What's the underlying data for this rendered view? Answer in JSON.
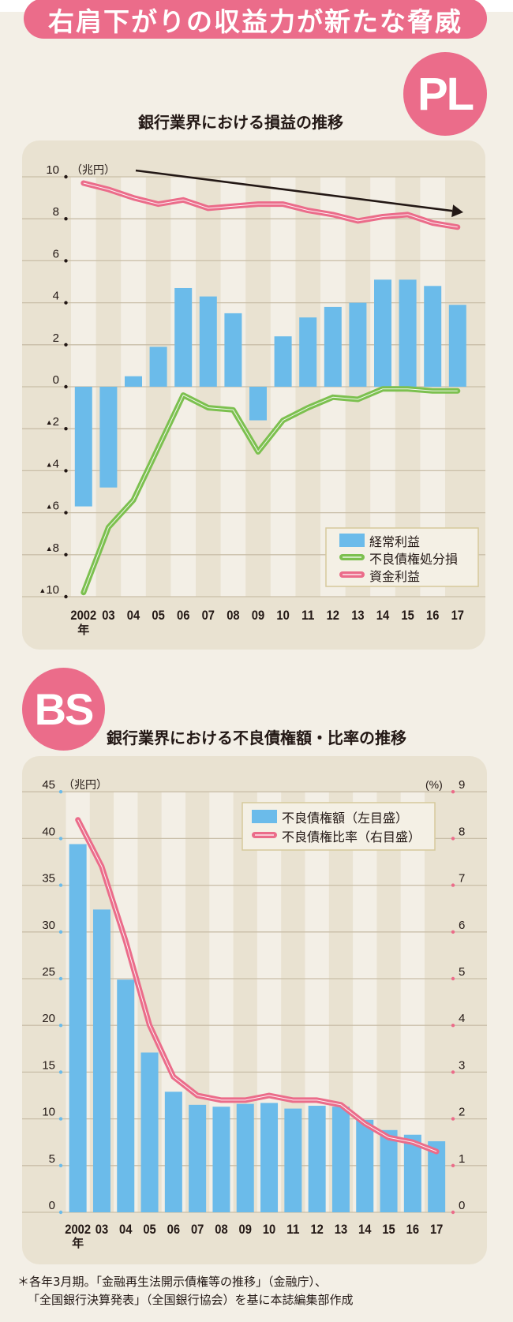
{
  "header": {
    "title": "右肩下がりの収益力が新たな脅威"
  },
  "pl": {
    "badge": "PL",
    "title": "銀行業界における損益の推移"
  },
  "bs": {
    "badge": "BS",
    "title": "銀行業界における不良債権額・比率の推移"
  },
  "footnote": {
    "lines": [
      "＊各年3月期。「金融再生法開示債権等の推移」（金融庁）、",
      "「全国銀行決算発表」（全国銀行協会）を基に本誌編集部作成"
    ]
  },
  "colors": {
    "accent_pink": "#eb6c8a",
    "bar_blue": "#6bbbea",
    "line_green": "#7cc04f",
    "page_bg": "#f3efe6",
    "panel_bg": "#e9e2d1",
    "stripe_light": "#f3efe6",
    "gridline": "#c9bea8",
    "text": "#231815",
    "legend_bg": "#f4f0e5",
    "legend_border": "#d6c99c",
    "white": "#ffffff"
  },
  "chart_data": [
    {
      "id": "pl",
      "type": "bar",
      "title": "銀行業界における損益の推移",
      "xlabel": "",
      "ylabel": "（兆円）",
      "x_unit": "年",
      "categories": [
        "2002",
        "03",
        "04",
        "05",
        "06",
        "07",
        "08",
        "09",
        "10",
        "11",
        "12",
        "13",
        "14",
        "15",
        "16",
        "17"
      ],
      "ylim": [
        -10,
        10
      ],
      "y_axis": {
        "unit_label": "（兆円）",
        "range": [
          -10,
          10
        ],
        "ticks": [
          {
            "value": 10,
            "label": "10"
          },
          {
            "value": 8,
            "label": "8"
          },
          {
            "value": 6,
            "label": "6"
          },
          {
            "value": 4,
            "label": "4"
          },
          {
            "value": 2,
            "label": "2"
          },
          {
            "value": 0,
            "label": "0"
          },
          {
            "value": -2,
            "label": "▲2"
          },
          {
            "value": -4,
            "label": "▲4"
          },
          {
            "value": -6,
            "label": "▲6"
          },
          {
            "value": -8,
            "label": "▲8"
          },
          {
            "value": -10,
            "label": "▲10"
          }
        ]
      },
      "series": [
        {
          "id": "ordinary-profit",
          "name": "経常利益",
          "type": "bar",
          "axis": "left",
          "color": "#6bbbea",
          "values": [
            -5.7,
            -4.8,
            0.5,
            1.9,
            4.7,
            4.3,
            3.5,
            -1.6,
            2.4,
            3.3,
            3.8,
            4.0,
            5.1,
            5.1,
            4.8,
            3.9
          ]
        },
        {
          "id": "npl-disposal-loss",
          "name": "不良債権処分損",
          "type": "line",
          "axis": "left",
          "color": "#7cc04f",
          "values": [
            -9.8,
            -6.7,
            -5.4,
            -2.9,
            -0.4,
            -1.0,
            -1.1,
            -3.1,
            -1.6,
            -1.0,
            -0.5,
            -0.6,
            -0.1,
            -0.1,
            -0.2,
            -0.2
          ]
        },
        {
          "id": "net-interest-income",
          "name": "資金利益",
          "type": "line",
          "axis": "left",
          "color": "#eb6c8a",
          "values": [
            9.7,
            9.4,
            9.0,
            8.7,
            8.9,
            8.5,
            8.6,
            8.7,
            8.7,
            8.4,
            8.2,
            7.9,
            8.1,
            8.2,
            7.8,
            7.6
          ]
        }
      ],
      "legend": {
        "position": "lower-right"
      },
      "grid": true,
      "annotations": [
        {
          "type": "trend-arrow",
          "direction": "down",
          "from": "2002",
          "to": "17",
          "color": "#231815"
        }
      ]
    },
    {
      "id": "bs",
      "type": "bar",
      "title": "銀行業界における不良債権額・比率の推移",
      "xlabel": "",
      "ylabel": "（兆円）",
      "ylabel_right": "(%)",
      "x_unit": "年",
      "categories": [
        "2002",
        "03",
        "04",
        "05",
        "06",
        "07",
        "08",
        "09",
        "10",
        "11",
        "12",
        "13",
        "14",
        "15",
        "16",
        "17"
      ],
      "ylim": [
        0,
        45
      ],
      "ylim_right": [
        0,
        9
      ],
      "y_axis": {
        "unit_label": "（兆円）",
        "range": [
          0,
          45
        ],
        "ticks": [
          {
            "value": 45,
            "label": "45"
          },
          {
            "value": 40,
            "label": "40"
          },
          {
            "value": 35,
            "label": "35"
          },
          {
            "value": 30,
            "label": "30"
          },
          {
            "value": 25,
            "label": "25"
          },
          {
            "value": 20,
            "label": "20"
          },
          {
            "value": 15,
            "label": "15"
          },
          {
            "value": 10,
            "label": "10"
          },
          {
            "value": 5,
            "label": "5"
          },
          {
            "value": 0,
            "label": "0"
          }
        ]
      },
      "y_axis_right": {
        "unit_label": "(%)",
        "range": [
          0,
          9
        ],
        "ticks": [
          {
            "value": 9,
            "label": "9"
          },
          {
            "value": 8,
            "label": "8"
          },
          {
            "value": 7,
            "label": "7"
          },
          {
            "value": 6,
            "label": "6"
          },
          {
            "value": 5,
            "label": "5"
          },
          {
            "value": 4,
            "label": "4"
          },
          {
            "value": 3,
            "label": "3"
          },
          {
            "value": 2,
            "label": "2"
          },
          {
            "value": 1,
            "label": "1"
          },
          {
            "value": 0,
            "label": "0"
          }
        ]
      },
      "series": [
        {
          "id": "npl-amount",
          "name": "不良債権額（左目盛）",
          "type": "bar",
          "axis": "left",
          "color": "#6bbbea",
          "values": [
            39.4,
            32.4,
            24.9,
            17.1,
            12.9,
            11.5,
            11.3,
            11.6,
            11.7,
            11.1,
            11.4,
            11.3,
            9.9,
            8.8,
            8.3,
            7.6
          ]
        },
        {
          "id": "npl-ratio",
          "name": "不良債権比率（右目盛）",
          "type": "line",
          "axis": "right",
          "color": "#eb6c8a",
          "values": [
            8.4,
            7.4,
            5.8,
            4.0,
            2.9,
            2.5,
            2.4,
            2.4,
            2.5,
            2.4,
            2.4,
            2.3,
            1.9,
            1.6,
            1.5,
            1.3
          ]
        }
      ],
      "legend": {
        "position": "upper-right"
      },
      "grid": true,
      "annotations": []
    }
  ]
}
